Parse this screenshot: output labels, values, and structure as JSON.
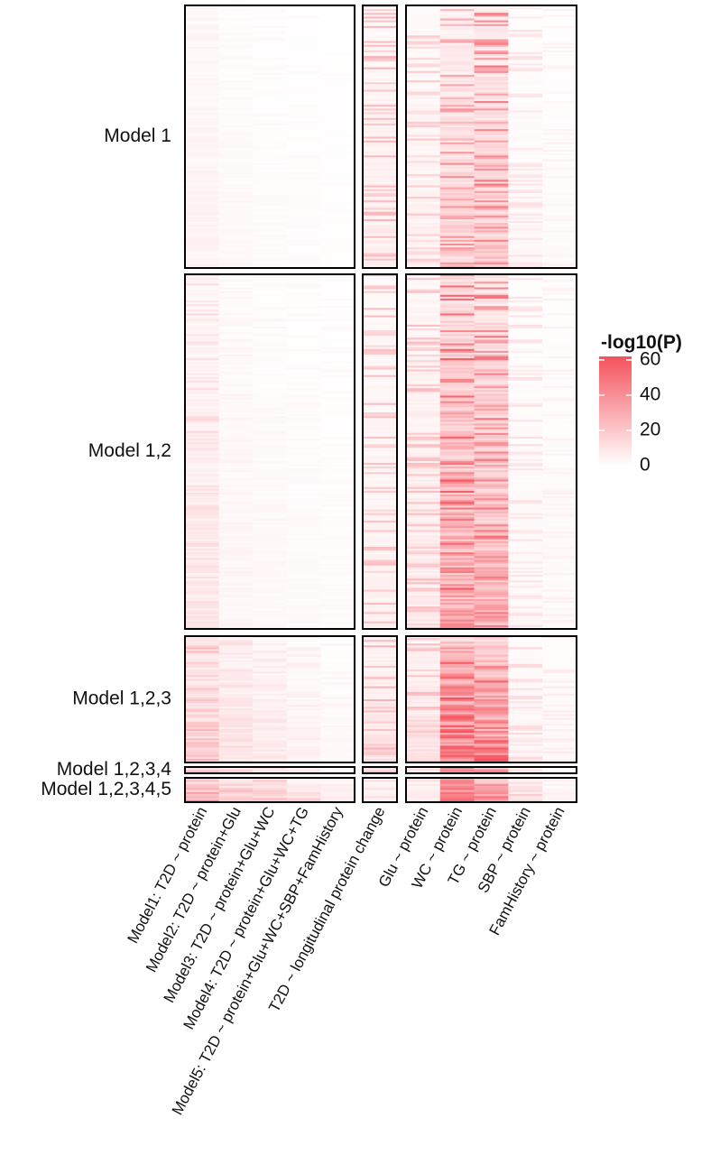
{
  "chart_data": {
    "type": "heatmap",
    "title": "",
    "color_scale": {
      "title": "-log10(P)",
      "min": 0,
      "max": 62,
      "ticks": [
        60,
        40,
        20,
        0
      ],
      "low_color": "#ffffff",
      "high_color": "#f4525d"
    },
    "column_groups": [
      {
        "columns": [
          "Model1: T2D ~ protein",
          "Model2: T2D ~ protein+Glu",
          "Model3: T2D ~ protein+Glu+WC",
          "Model4: T2D ~ protein+Glu+WC+TG",
          "Model5: T2D ~ protein+Glu+WC+SBP+FamHistory"
        ]
      },
      {
        "columns": [
          "T2D ~ longitudinal protein change"
        ]
      },
      {
        "columns": [
          "Glu ~ protein",
          "WC ~ protein",
          "TG ~ protein",
          "SBP ~ protein",
          "FamHistory ~ protein"
        ]
      }
    ],
    "row_groups": [
      {
        "label": "Model 1",
        "n_rows": 140,
        "column_mean_neglog10p": [
          3.5,
          1.8,
          1.2,
          1.0,
          0.7,
          5,
          4,
          12,
          14,
          2,
          1.2
        ],
        "column_max_neglog10p": [
          5,
          3,
          2.5,
          2,
          1.5,
          28,
          20,
          45,
          50,
          12,
          5
        ]
      },
      {
        "label": "Model 1,2",
        "n_rows": 190,
        "column_mean_neglog10p": [
          6,
          2.5,
          1.8,
          1.4,
          1,
          4,
          6,
          24,
          20,
          2,
          1.5
        ],
        "column_max_neglog10p": [
          14,
          5,
          4,
          3,
          2.5,
          25,
          25,
          60,
          52,
          12,
          6
        ]
      },
      {
        "label": "Model 1,2,3",
        "n_rows": 68,
        "column_mean_neglog10p": [
          14,
          8,
          5,
          3,
          1.5,
          8,
          8,
          38,
          34,
          3,
          2
        ],
        "column_max_neglog10p": [
          28,
          14,
          10,
          7,
          4,
          30,
          25,
          62,
          62,
          14,
          8
        ]
      },
      {
        "label": "Model 1,2,3,4",
        "n_rows": 4,
        "column_mean_neglog10p": [
          22,
          14,
          10,
          6,
          3,
          20,
          6,
          40,
          30,
          5,
          2
        ],
        "column_max_neglog10p": [
          28,
          18,
          14,
          9,
          5,
          30,
          12,
          55,
          45,
          10,
          5
        ]
      },
      {
        "label": "Model 1,2,3,4,5",
        "n_rows": 12,
        "column_mean_neglog10p": [
          26,
          18,
          14,
          10,
          6,
          6,
          5,
          40,
          32,
          10,
          3
        ],
        "column_max_neglog10p": [
          34,
          24,
          20,
          14,
          10,
          14,
          12,
          62,
          55,
          20,
          8
        ]
      }
    ]
  }
}
